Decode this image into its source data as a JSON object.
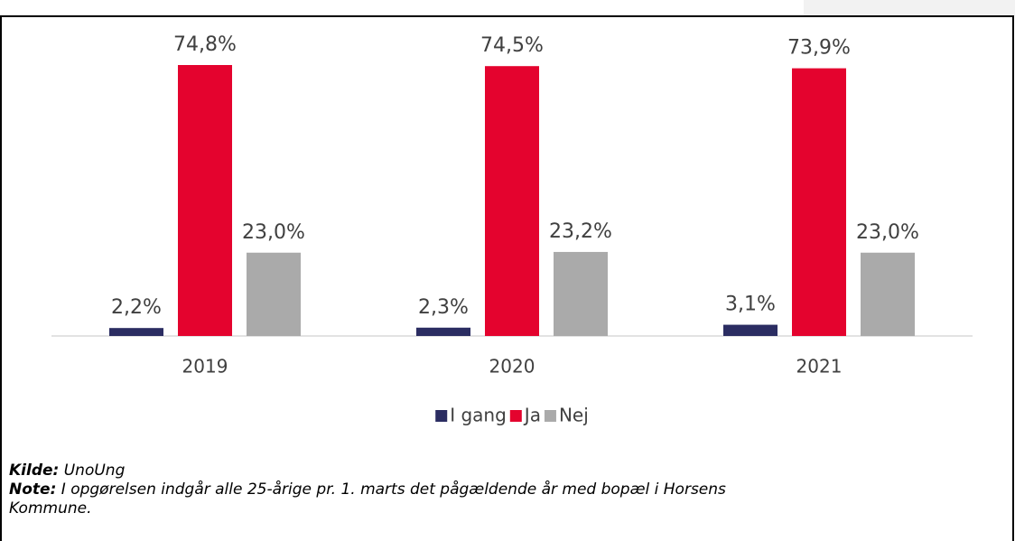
{
  "chart_data": {
    "type": "bar",
    "categories": [
      "2019",
      "2020",
      "2021"
    ],
    "series": [
      {
        "name": "I gang",
        "color": "#2b2d62",
        "values": [
          2.2,
          2.3,
          3.1
        ],
        "value_labels": [
          "2,2%",
          "2,3%",
          "3,1%"
        ]
      },
      {
        "name": "Ja",
        "color": "#e4032e",
        "values": [
          74.8,
          74.5,
          73.9
        ],
        "value_labels": [
          "74,8%",
          "74,5%",
          "73,9%"
        ]
      },
      {
        "name": "Nej",
        "color": "#aaaaaa",
        "values": [
          23.0,
          23.2,
          23.0
        ],
        "value_labels": [
          "23,0%",
          "23,2%",
          "23,0%"
        ]
      }
    ],
    "legend": "bottom"
  },
  "notes": {
    "source_label": "Kilde:",
    "source": "UnoUng",
    "note_label": "Note:",
    "note_lines": [
      "I opgørelsen indgår alle 25-årige pr. 1. marts det pågældende år med bopæl i Horsens",
      "Kommune."
    ]
  }
}
